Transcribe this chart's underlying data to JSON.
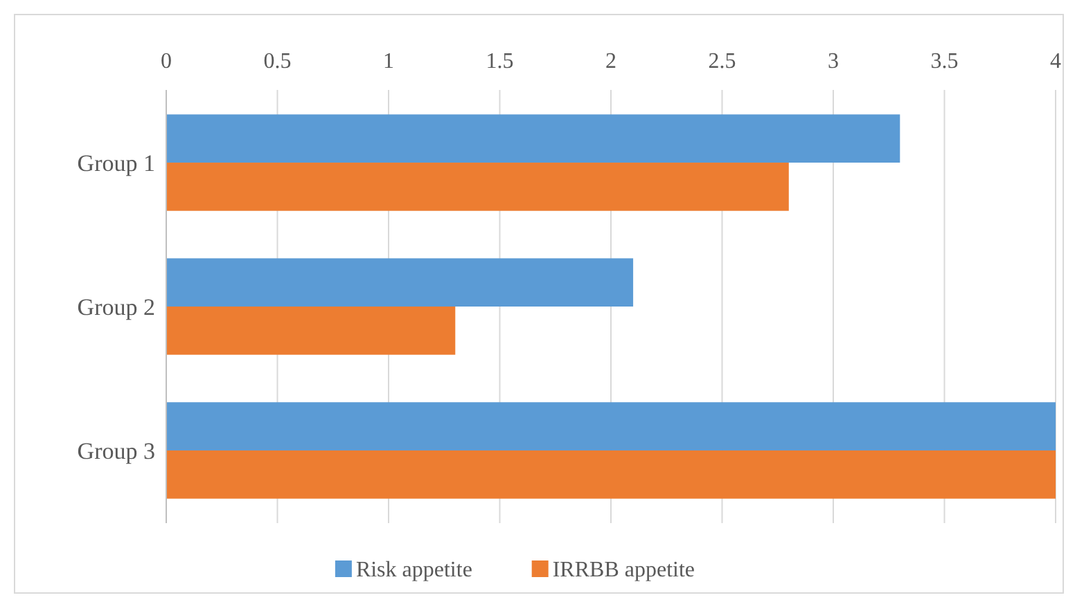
{
  "chart_data": {
    "type": "bar",
    "orientation": "horizontal",
    "categories": [
      "Group 1",
      "Group 2",
      "Group 3"
    ],
    "series": [
      {
        "name": "Risk appetite",
        "color": "#5b9bd5",
        "values": [
          3.3,
          2.1,
          4
        ]
      },
      {
        "name": "IRRBB appetite",
        "color": "#ed7d31",
        "values": [
          2.8,
          1.3,
          4
        ]
      }
    ],
    "xlim": [
      0,
      4
    ],
    "xticks": [
      0,
      0.5,
      1,
      1.5,
      2,
      2.5,
      3,
      3.5,
      4
    ],
    "grid": "x",
    "legend": "bottom"
  }
}
